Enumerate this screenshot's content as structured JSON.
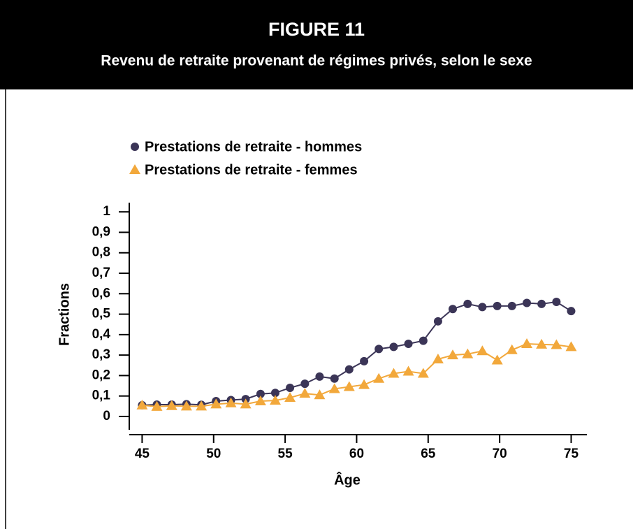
{
  "chart_data": {
    "type": "line",
    "title": "FIGURE 11",
    "subtitle": "Revenu de retraite provenant de régimes privés, selon le sexe",
    "xlabel": "Âge",
    "ylabel": "Fractions",
    "x": [
      45,
      46.03,
      47.07,
      48.1,
      49.14,
      50.17,
      51.21,
      52.24,
      53.28,
      54.31,
      55.34,
      56.38,
      57.41,
      58.45,
      59.48,
      60.52,
      61.55,
      62.59,
      63.62,
      64.66,
      65.69,
      66.72,
      67.76,
      68.79,
      69.83,
      70.86,
      71.9,
      72.93,
      73.97,
      75
    ],
    "series": [
      {
        "name": "Prestations de retraite - hommes",
        "color": "#3b3557",
        "marker": "circle",
        "values": [
          0.055,
          0.058,
          0.058,
          0.06,
          0.057,
          0.075,
          0.08,
          0.085,
          0.11,
          0.115,
          0.14,
          0.16,
          0.195,
          0.185,
          0.23,
          0.27,
          0.33,
          0.34,
          0.355,
          0.37,
          0.465,
          0.525,
          0.55,
          0.535,
          0.54,
          0.54,
          0.555,
          0.55,
          0.56,
          0.515
        ]
      },
      {
        "name": "Prestations de retraite - femmes",
        "color": "#f2a83b",
        "marker": "triangle",
        "values": [
          0.055,
          0.048,
          0.052,
          0.05,
          0.05,
          0.06,
          0.065,
          0.06,
          0.075,
          0.078,
          0.092,
          0.112,
          0.105,
          0.135,
          0.145,
          0.155,
          0.185,
          0.21,
          0.22,
          0.21,
          0.28,
          0.3,
          0.305,
          0.32,
          0.275,
          0.325,
          0.355,
          0.352,
          0.35,
          0.34
        ]
      }
    ],
    "xlim": [
      44.1,
      76.1
    ],
    "xticks": [
      45,
      50,
      55,
      60,
      65,
      70,
      75
    ],
    "ylim": [
      -0.065,
      1.045
    ],
    "yticks": [
      0,
      {
        "value": 0.1,
        "label": "0,1"
      },
      {
        "value": 0.2,
        "label": "0,2"
      },
      {
        "value": 0.3,
        "label": "0,3"
      },
      {
        "value": 0.4,
        "label": "0,4"
      },
      {
        "value": 0.5,
        "label": "0,5"
      },
      {
        "value": 0.6,
        "label": "0,6"
      },
      {
        "value": 0.7,
        "label": "0,7"
      },
      {
        "value": 0.8,
        "label": "0,8"
      },
      {
        "value": 0.9,
        "label": "0,9"
      },
      1
    ],
    "legend": "top-left"
  }
}
